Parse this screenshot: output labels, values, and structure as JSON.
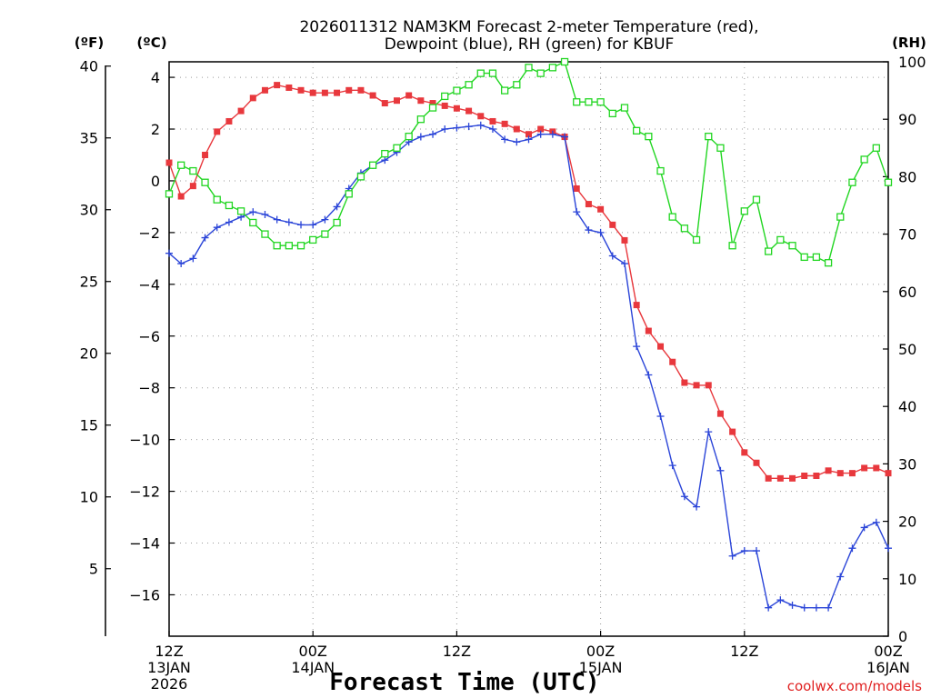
{
  "chart_data": {
    "type": "line",
    "title_line1": "2026011312 NAM3KM Forecast 2-meter Temperature (red),",
    "title_line2": "Dewpoint (blue), RH (green) for KBUF",
    "xlabel": "Forecast Time (UTC)",
    "credit": "coolwx.com/models",
    "axis_units": {
      "fahrenheit": "(ºF)",
      "celsius": "(ºC)",
      "rh": "(RH)"
    },
    "celsius_ylim": [
      -17.6,
      4.6
    ],
    "fahrenheit_ylim": [
      0.3,
      40.3
    ],
    "rh_ylim": [
      0,
      100
    ],
    "x_range_hours": [
      0,
      60
    ],
    "celsius_ticks": [
      "4",
      "2",
      "0",
      "-2",
      "-4",
      "-6",
      "-8",
      "-10",
      "-12",
      "-14",
      "-16"
    ],
    "fahrenheit_ticks": [
      "40",
      "35",
      "30",
      "25",
      "20",
      "15",
      "10",
      "5"
    ],
    "rh_ticks": [
      "100",
      "90",
      "80",
      "70",
      "60",
      "50",
      "40",
      "30",
      "20",
      "10",
      "0"
    ],
    "x_ticks": [
      {
        "hour": 0,
        "line1": "12Z",
        "line2": "13JAN",
        "line3": "2026"
      },
      {
        "hour": 12,
        "line1": "00Z",
        "line2": "14JAN",
        "line3": ""
      },
      {
        "hour": 24,
        "line1": "12Z",
        "line2": "",
        "line3": ""
      },
      {
        "hour": 36,
        "line1": "00Z",
        "line2": "15JAN",
        "line3": ""
      },
      {
        "hour": 48,
        "line1": "12Z",
        "line2": "",
        "line3": ""
      },
      {
        "hour": 60,
        "line1": "00Z",
        "line2": "16JAN",
        "line3": ""
      }
    ],
    "series": [
      {
        "name": "Temperature (C)",
        "color": "#e8383d",
        "marker": "filled-square",
        "values": [
          0.7,
          -0.6,
          -0.2,
          1.0,
          1.9,
          2.3,
          2.7,
          3.2,
          3.5,
          3.7,
          3.6,
          3.5,
          3.4,
          3.4,
          3.4,
          3.5,
          3.5,
          3.3,
          3.0,
          3.1,
          3.3,
          3.1,
          3.0,
          2.9,
          2.8,
          2.7,
          2.5,
          2.3,
          2.2,
          2.0,
          1.8,
          2.0,
          1.9,
          1.7,
          -0.3,
          -0.9,
          -1.1,
          -1.7,
          -2.3,
          -4.8,
          -5.8,
          -6.4,
          -7.0,
          -7.8,
          -7.9,
          -7.9,
          -9.0,
          -9.7,
          -10.5,
          -10.9,
          -11.5,
          -11.5,
          -11.5,
          -11.4,
          -11.4,
          -11.2,
          -11.3,
          -11.3,
          -11.1,
          -11.1,
          -11.3
        ]
      },
      {
        "name": "Dewpoint (C)",
        "color": "#2b45d8",
        "marker": "plus",
        "values": [
          -2.8,
          -3.2,
          -3.0,
          -2.2,
          -1.8,
          -1.6,
          -1.4,
          -1.2,
          -1.3,
          -1.5,
          -1.6,
          -1.7,
          -1.7,
          -1.5,
          -1.0,
          -0.3,
          0.3,
          0.6,
          0.8,
          1.1,
          1.5,
          1.7,
          1.8,
          2.0,
          2.05,
          2.1,
          2.15,
          2.0,
          1.6,
          1.5,
          1.6,
          1.8,
          1.8,
          1.7,
          -1.2,
          -1.9,
          -2.0,
          -2.9,
          -3.2,
          -6.4,
          -7.5,
          -9.1,
          -11.0,
          -12.2,
          -12.6,
          -9.7,
          -11.2,
          -14.5,
          -14.3,
          -14.3,
          -16.5,
          -16.2,
          -16.4,
          -16.5,
          -16.5,
          -16.5,
          -15.3,
          -14.2,
          -13.4,
          -13.2,
          -14.2
        ]
      },
      {
        "name": "Relative Humidity (%)",
        "color": "#22d622",
        "marker": "open-square",
        "values": [
          77,
          82,
          81,
          79,
          76,
          75,
          74,
          72,
          70,
          68,
          68,
          68,
          69,
          70,
          72,
          77,
          80,
          82,
          84,
          85,
          87,
          90,
          92,
          94,
          95,
          96,
          98,
          98,
          95,
          96,
          99,
          98,
          99,
          100,
          93,
          93,
          93,
          91,
          92,
          88,
          87,
          81,
          73,
          71,
          69,
          87,
          85,
          68,
          74,
          76,
          67,
          69,
          68,
          66,
          66,
          65,
          73,
          79,
          83,
          85,
          79
        ]
      }
    ]
  }
}
